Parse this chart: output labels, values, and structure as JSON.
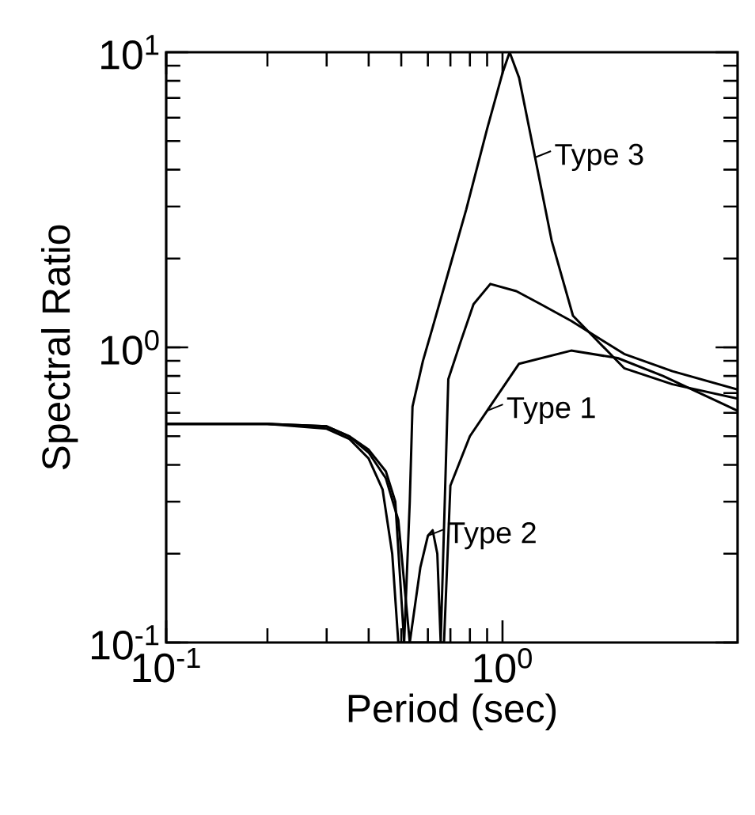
{
  "chart_data": {
    "type": "line",
    "xlabel": "Period (sec)",
    "ylabel": "Spectral Ratio",
    "log": "xy",
    "legend": "right",
    "grid": false,
    "xlim": [
      0.1,
      5
    ],
    "ylim": [
      0.1,
      10
    ],
    "xticks": [
      {
        "value": 0.1,
        "label": "10$^{-1}$"
      },
      {
        "value": 1,
        "label": "10$^{0}$"
      }
    ],
    "yticks": [
      {
        "value": 0.1,
        "label": "10$^{-1}$"
      },
      {
        "value": 1,
        "label": "10$^{0}$"
      },
      {
        "value": 10,
        "label": "10$^{1}$"
      }
    ],
    "series": [
      {
        "name": "Type 1",
        "color": "#000000",
        "x": [
          0.1,
          0.2,
          0.3,
          0.35,
          0.4,
          0.44,
          0.47,
          0.49,
          0.67,
          0.7,
          0.8,
          0.9,
          1.12,
          1.6,
          2.2,
          3.0,
          5.0
        ],
        "values": [
          0.55,
          0.55,
          0.53,
          0.49,
          0.42,
          0.33,
          0.2,
          0.1,
          0.1,
          0.34,
          0.5,
          0.61,
          0.88,
          0.975,
          0.92,
          0.8,
          0.61
        ]
      },
      {
        "name": "Type 2",
        "color": "#000000",
        "x": [
          0.1,
          0.2,
          0.3,
          0.35,
          0.4,
          0.45,
          0.49,
          0.53,
          0.57,
          0.6,
          0.62,
          0.64,
          0.655,
          0.69,
          0.75,
          0.82,
          0.92,
          1.1,
          1.3,
          1.6,
          2.3,
          3.2,
          5.0
        ],
        "values": [
          0.55,
          0.55,
          0.54,
          0.5,
          0.44,
          0.36,
          0.26,
          0.1,
          0.18,
          0.23,
          0.24,
          0.2,
          0.1,
          0.78,
          1.04,
          1.4,
          1.64,
          1.55,
          1.4,
          1.23,
          0.95,
          0.83,
          0.72
        ]
      },
      {
        "name": "Type 3",
        "color": "#000000",
        "x": [
          0.1,
          0.2,
          0.3,
          0.35,
          0.4,
          0.45,
          0.48,
          0.51,
          0.53,
          0.54,
          0.58,
          0.62,
          0.7,
          0.78,
          0.9,
          1.0,
          1.05,
          1.12,
          1.25,
          1.4,
          1.62,
          2.3,
          3.2,
          5.0
        ],
        "values": [
          0.55,
          0.55,
          0.54,
          0.5,
          0.45,
          0.38,
          0.3,
          0.1,
          0.3,
          0.63,
          0.9,
          1.17,
          1.9,
          2.93,
          5.5,
          8.5,
          10,
          8.2,
          4.4,
          2.3,
          1.28,
          0.85,
          0.75,
          0.67
        ]
      }
    ]
  }
}
